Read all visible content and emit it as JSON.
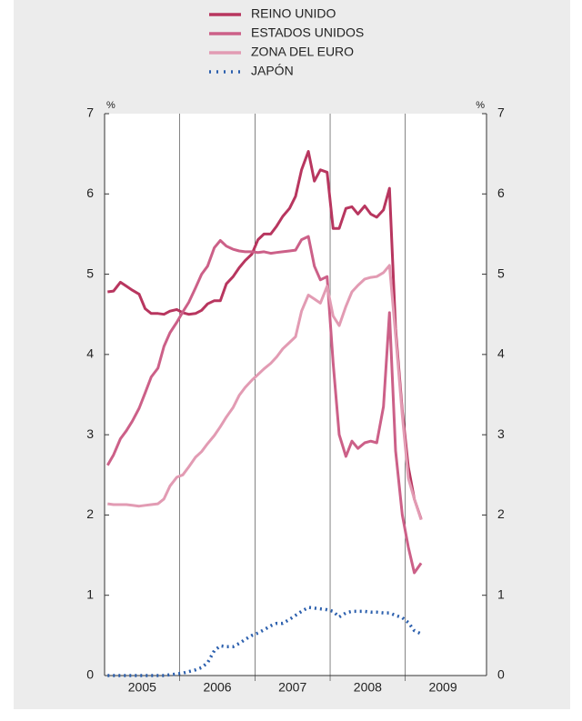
{
  "chart_data": {
    "type": "line",
    "y_unit": "%",
    "x": [
      2005.04,
      2005.12,
      2005.21,
      2005.29,
      2005.37,
      2005.46,
      2005.54,
      2005.62,
      2005.71,
      2005.79,
      2005.87,
      2005.96,
      2006.04,
      2006.12,
      2006.21,
      2006.29,
      2006.37,
      2006.46,
      2006.54,
      2006.62,
      2006.71,
      2006.79,
      2006.87,
      2006.96,
      2007.04,
      2007.12,
      2007.21,
      2007.29,
      2007.37,
      2007.46,
      2007.54,
      2007.62,
      2007.71,
      2007.79,
      2007.87,
      2007.96,
      2008.04,
      2008.12,
      2008.21,
      2008.29,
      2008.37,
      2008.46,
      2008.54,
      2008.62,
      2008.71,
      2008.79,
      2008.87,
      2008.96,
      2009.04,
      2009.12,
      2009.21
    ],
    "series": [
      {
        "name": "REINO UNIDO",
        "color": "#b8365f",
        "dash": "solid",
        "values": [
          4.78,
          4.79,
          4.9,
          4.85,
          4.8,
          4.75,
          4.57,
          4.51,
          4.51,
          4.5,
          4.54,
          4.56,
          4.52,
          4.5,
          4.51,
          4.55,
          4.63,
          4.67,
          4.67,
          4.88,
          4.97,
          5.08,
          5.17,
          5.25,
          5.43,
          5.5,
          5.5,
          5.6,
          5.72,
          5.82,
          5.97,
          6.3,
          6.53,
          6.16,
          6.3,
          6.27,
          5.57,
          5.57,
          5.82,
          5.84,
          5.75,
          5.85,
          5.75,
          5.71,
          5.8,
          6.07,
          4.32,
          3.3,
          2.6,
          2.2,
          1.95
        ]
      },
      {
        "name": "ESTADOS UNIDOS",
        "color": "#cc6088",
        "dash": "solid",
        "values": [
          2.62,
          2.75,
          2.95,
          3.05,
          3.17,
          3.33,
          3.52,
          3.72,
          3.83,
          4.1,
          4.27,
          4.4,
          4.53,
          4.65,
          4.83,
          5.0,
          5.1,
          5.33,
          5.42,
          5.35,
          5.31,
          5.29,
          5.28,
          5.28,
          5.27,
          5.28,
          5.26,
          5.27,
          5.28,
          5.29,
          5.3,
          5.43,
          5.47,
          5.1,
          4.93,
          4.97,
          3.9,
          3.0,
          2.73,
          2.92,
          2.83,
          2.9,
          2.92,
          2.9,
          3.35,
          4.52,
          2.8,
          2.0,
          1.6,
          1.28,
          1.4
        ]
      },
      {
        "name": "ZONA DEL EURO",
        "color": "#e29bb3",
        "dash": "solid",
        "values": [
          2.14,
          2.13,
          2.13,
          2.13,
          2.12,
          2.11,
          2.12,
          2.13,
          2.14,
          2.2,
          2.36,
          2.47,
          2.5,
          2.6,
          2.72,
          2.79,
          2.89,
          2.99,
          3.1,
          3.22,
          3.34,
          3.49,
          3.59,
          3.68,
          3.75,
          3.82,
          3.89,
          3.97,
          4.07,
          4.15,
          4.22,
          4.54,
          4.74,
          4.69,
          4.64,
          4.85,
          4.48,
          4.36,
          4.6,
          4.78,
          4.86,
          4.94,
          4.96,
          4.97,
          5.02,
          5.11,
          4.24,
          3.24,
          2.46,
          2.2,
          1.94
        ]
      },
      {
        "name": "JAPÓN",
        "color": "#2b5fad",
        "dash": "dotted",
        "values": [
          0,
          0,
          0,
          0,
          0,
          0,
          0,
          0,
          0,
          0,
          0.01,
          0.02,
          0.03,
          0.05,
          0.07,
          0.1,
          0.16,
          0.31,
          0.37,
          0.36,
          0.36,
          0.4,
          0.45,
          0.5,
          0.53,
          0.57,
          0.62,
          0.65,
          0.65,
          0.7,
          0.75,
          0.8,
          0.85,
          0.84,
          0.83,
          0.82,
          0.8,
          0.73,
          0.78,
          0.8,
          0.8,
          0.8,
          0.79,
          0.79,
          0.78,
          0.78,
          0.75,
          0.72,
          0.66,
          0.56,
          0.52
        ]
      }
    ],
    "xlim": [
      2005,
      2010.08
    ],
    "xticks": [
      {
        "value": 2005.5,
        "label": "2005"
      },
      {
        "value": 2006.5,
        "label": "2006"
      },
      {
        "value": 2007.5,
        "label": "2007"
      },
      {
        "value": 2008.5,
        "label": "2008"
      },
      {
        "value": 2009.5,
        "label": "2009"
      }
    ],
    "xgrid": [
      2006,
      2007,
      2008,
      2009
    ],
    "ylim": [
      0,
      7
    ],
    "yticks": [
      0,
      1,
      2,
      3,
      4,
      5,
      6,
      7
    ]
  }
}
